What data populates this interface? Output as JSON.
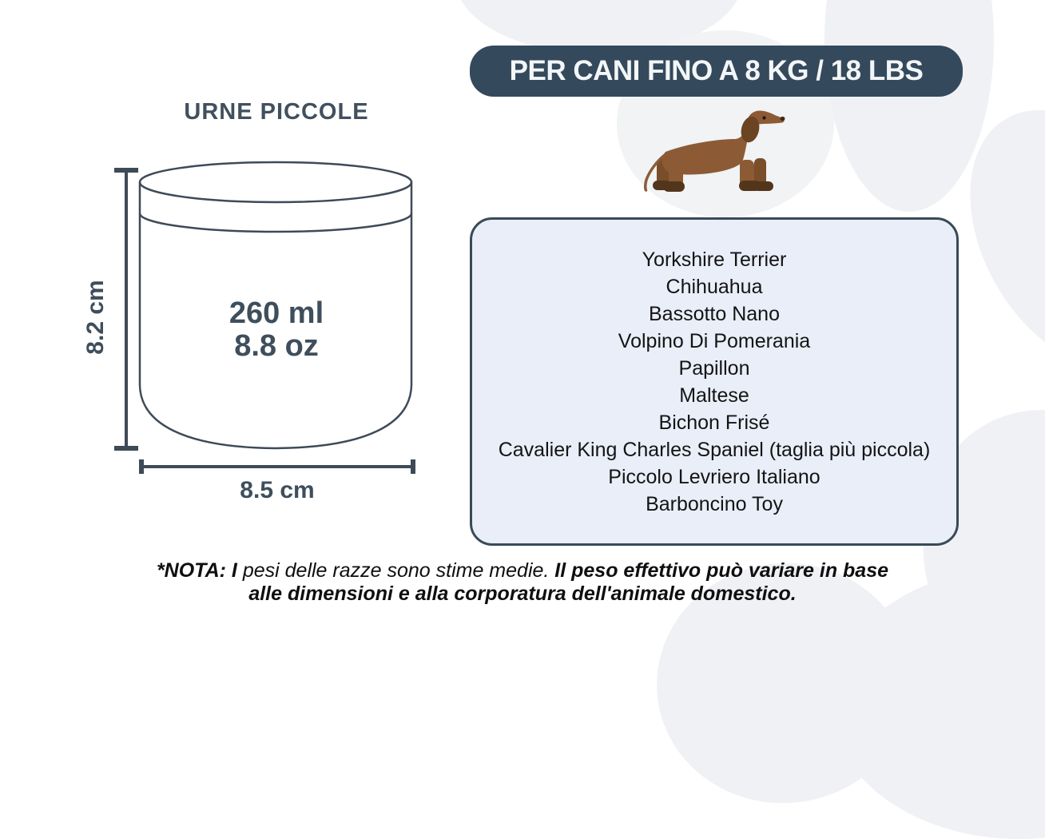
{
  "badge_label": "PER CANI FINO A 8 KG / 18 LBS",
  "urn": {
    "title": "URNE PICCOLE",
    "height_label": "8.2 cm",
    "diameter_label": "8.5 cm",
    "volume_ml": "260 ml",
    "volume_oz": "8.8 oz"
  },
  "breeds": [
    "Yorkshire Terrier",
    "Chihuahua",
    "Bassotto Nano",
    "Volpino Di Pomerania",
    "Papillon",
    "Maltese",
    "Bichon Frisé",
    "Cavalier King Charles Spaniel (taglia più piccola)",
    "Piccolo Levriero Italiano",
    "Barboncino Toy"
  ],
  "note": {
    "line1_bold_prefix": "*NOTA: I ",
    "line1_regular": "pesi delle razze sono stime medie. ",
    "line1_bold_rest": "Il peso effettivo può variare in base",
    "line2_bold": "alle dimensioni e alla corporatura dell'animale domestico."
  },
  "icons": {
    "dog_illustration": "dachshund-icon",
    "background_decoration": "paw-print-background"
  },
  "colors": {
    "ink": "#3E4E5C",
    "badge_bg": "#35495C",
    "badge_text": "#F3F6F8",
    "box_bg": "#E9EEF8",
    "box_border": "#394A57",
    "paw_gray": "#EFF1F4",
    "dog_brown": "#8C5B36",
    "dog_dark_brown": "#6B4423",
    "dog_paw_brown": "#53351C",
    "list_text": "#141414"
  }
}
